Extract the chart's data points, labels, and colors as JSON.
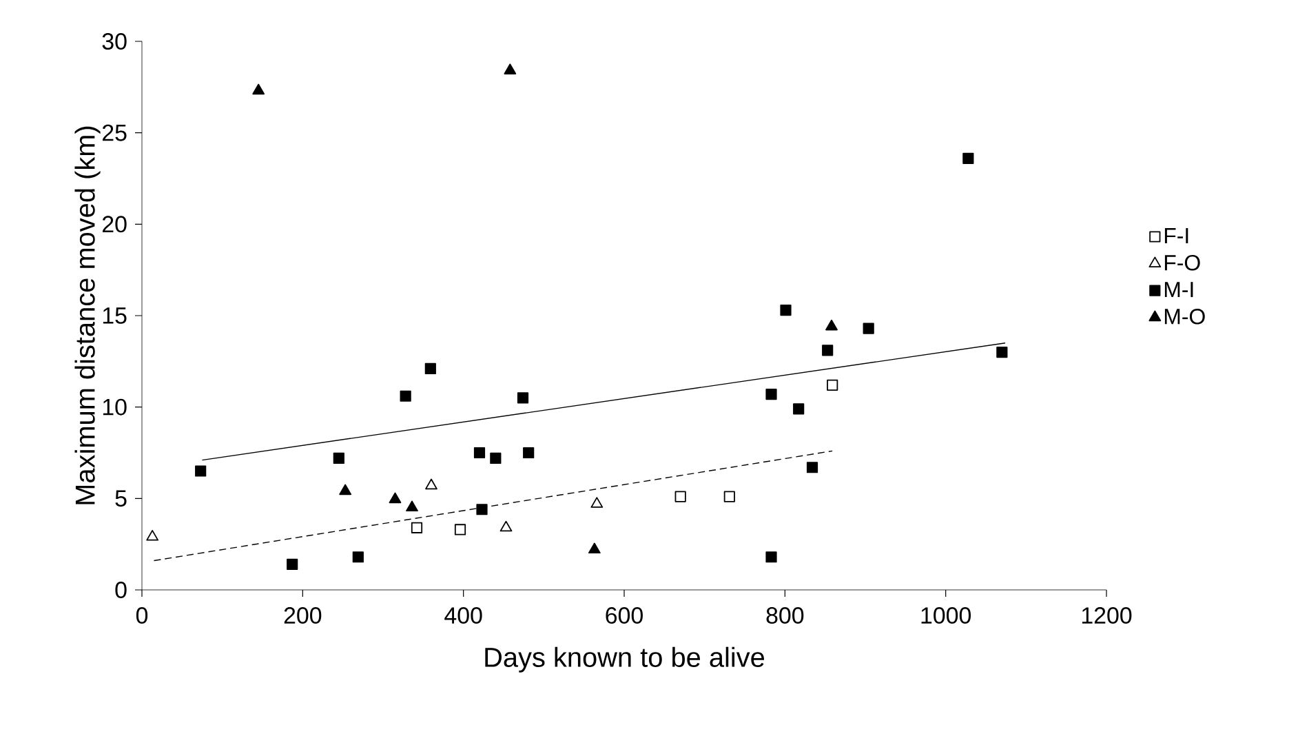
{
  "chart_data": {
    "type": "scatter",
    "xlabel": "Days known to be alive",
    "ylabel": "Maximum distance moved (km)",
    "xlim": [
      0,
      1200
    ],
    "ylim": [
      0,
      30
    ],
    "xticks": [
      0,
      200,
      400,
      600,
      800,
      1000,
      1200
    ],
    "yticks": [
      0,
      5,
      10,
      15,
      20,
      25,
      30
    ],
    "grid": false,
    "legend": "right",
    "series": [
      {
        "name": "F-I",
        "color": "#ffffff",
        "marker": "square",
        "x": [
          342,
          396,
          670,
          731,
          859
        ],
        "values": [
          3.4,
          3.3,
          5.1,
          5.1,
          11.2
        ]
      },
      {
        "name": "F-O",
        "color": "#ffffff",
        "marker": "triangle",
        "x": [
          13,
          360,
          453,
          566
        ],
        "values": [
          2.9,
          5.7,
          3.4,
          4.7
        ]
      },
      {
        "name": "M-I",
        "color": "#000000",
        "marker": "square",
        "x": [
          73,
          187,
          245,
          269,
          328,
          359,
          420,
          423,
          440,
          474,
          481,
          783,
          783,
          801,
          817,
          834,
          853,
          904,
          1028,
          1070
        ],
        "values": [
          6.5,
          1.4,
          7.2,
          1.8,
          10.6,
          12.1,
          7.5,
          4.4,
          7.2,
          10.5,
          7.5,
          10.7,
          1.8,
          15.3,
          9.9,
          6.7,
          13.1,
          14.3,
          23.6,
          13.0
        ]
      },
      {
        "name": "M-O",
        "color": "#000000",
        "marker": "triangle",
        "x": [
          145,
          253,
          315,
          336,
          458,
          563,
          858
        ],
        "values": [
          27.3,
          5.4,
          4.95,
          4.5,
          28.4,
          2.2,
          14.4
        ]
      },
      {
        "type": "line",
        "color": "#000000",
        "marker": "none",
        "line_style": "solid",
        "x": [
          75,
          1074
        ],
        "values": [
          7.1,
          13.5
        ]
      },
      {
        "type": "line",
        "color": "#000000",
        "marker": "none",
        "line_style": "dashed",
        "x": [
          15,
          859
        ],
        "values": [
          1.6,
          7.6
        ]
      }
    ]
  }
}
